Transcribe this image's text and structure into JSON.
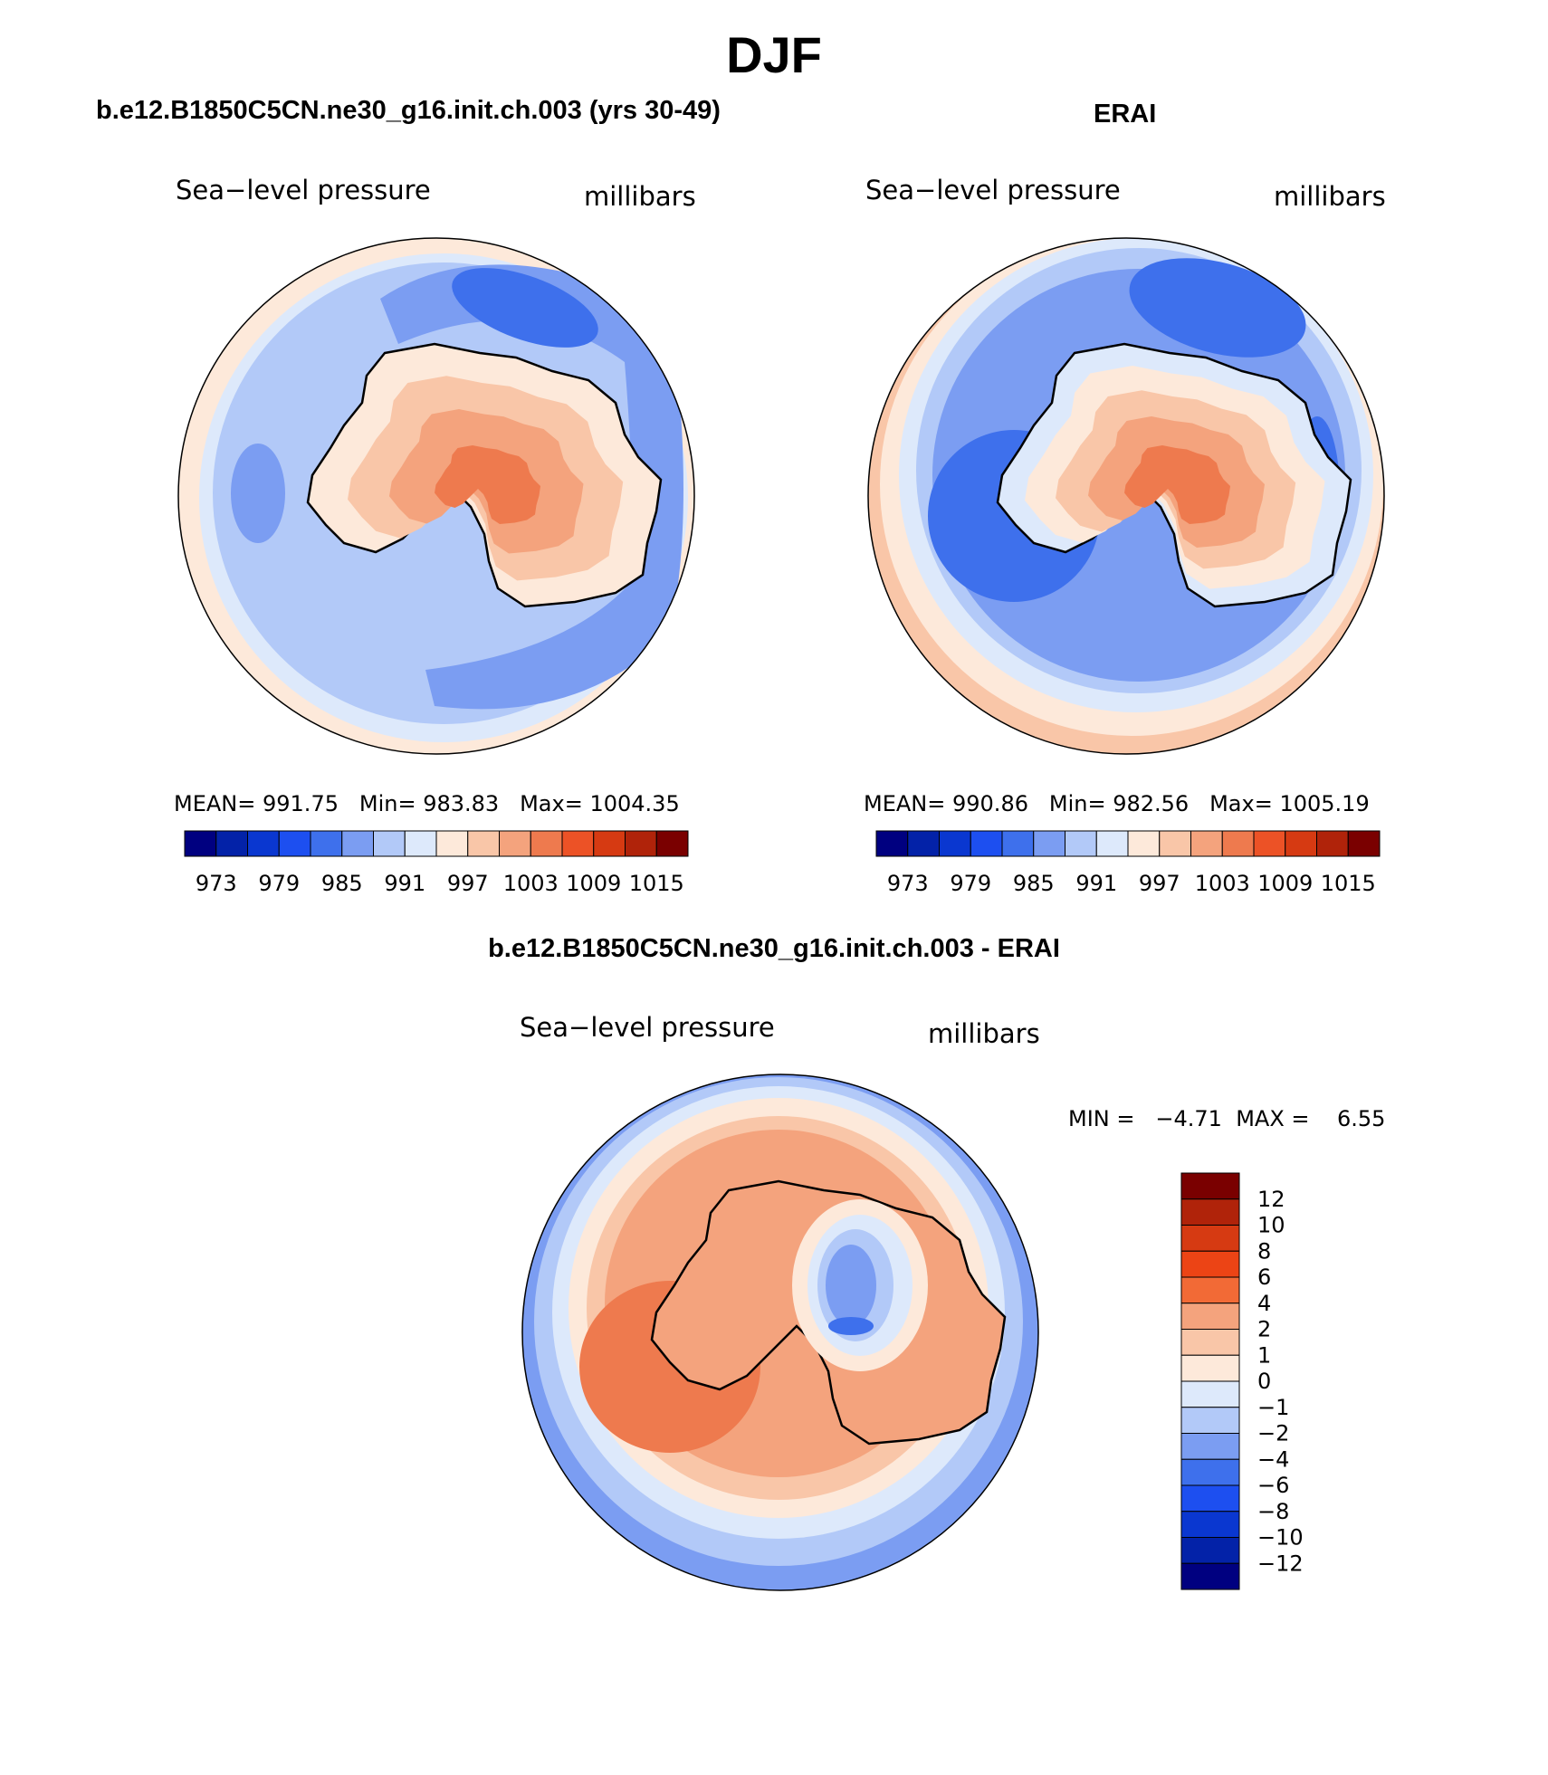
{
  "title": "DJF",
  "panels": [
    {
      "title": "b.e12.B1850C5CN.ne30_g16.init.ch.003 (yrs 30-49)",
      "left_label": "Sea−level pressure",
      "right_label": "millibars",
      "stats": {
        "mean_label": "MEAN=",
        "mean": "991.75",
        "min_label": "Min=",
        "min": "983.83",
        "max_label": "Max=",
        "max": "1004.35"
      },
      "colorbar_labels": [
        "973",
        "979",
        "985",
        "991",
        "997",
        "1003",
        "1009",
        "1015"
      ]
    },
    {
      "title": "ERAI",
      "left_label": "Sea−level pressure",
      "right_label": "millibars",
      "stats": {
        "mean_label": "MEAN=",
        "mean": "990.86",
        "min_label": "Min=",
        "min": "982.56",
        "max_label": "Max=",
        "max": "1005.19"
      },
      "colorbar_labels": [
        "973",
        "979",
        "985",
        "991",
        "997",
        "1003",
        "1009",
        "1015"
      ]
    },
    {
      "title": "b.e12.B1850C5CN.ne30_g16.init.ch.003 - ERAI",
      "left_label": "Sea−level pressure",
      "right_label": "millibars",
      "stats": {
        "min_label": "MIN =",
        "min": "−4.71",
        "max_label": "MAX =",
        "max": "6.55"
      },
      "colorbar_labels": [
        "12",
        "10",
        "8",
        "6",
        "4",
        "2",
        "1",
        "0",
        "−1",
        "−2",
        "−4",
        "−6",
        "−8",
        "−10",
        "−12"
      ]
    }
  ],
  "colors": {
    "abs_scale": [
      "#000080",
      "#0322a8",
      "#0a37d0",
      "#1d4ff0",
      "#3e70ec",
      "#7b9df2",
      "#b2c9f8",
      "#dde9fb",
      "#fde9da",
      "#f9c6a8",
      "#f4a37d",
      "#ee7a4e",
      "#ec5226",
      "#d63a12",
      "#b0230a",
      "#7a0000"
    ],
    "diff_scale": [
      "#7a0000",
      "#b0230a",
      "#d63a12",
      "#ec4415",
      "#f26a36",
      "#f4a37d",
      "#f9c6a8",
      "#fde9da",
      "#dde9fb",
      "#b2c9f8",
      "#7b9df2",
      "#3e70ec",
      "#1d4ff0",
      "#0a37d0",
      "#0322a8",
      "#000080"
    ]
  }
}
